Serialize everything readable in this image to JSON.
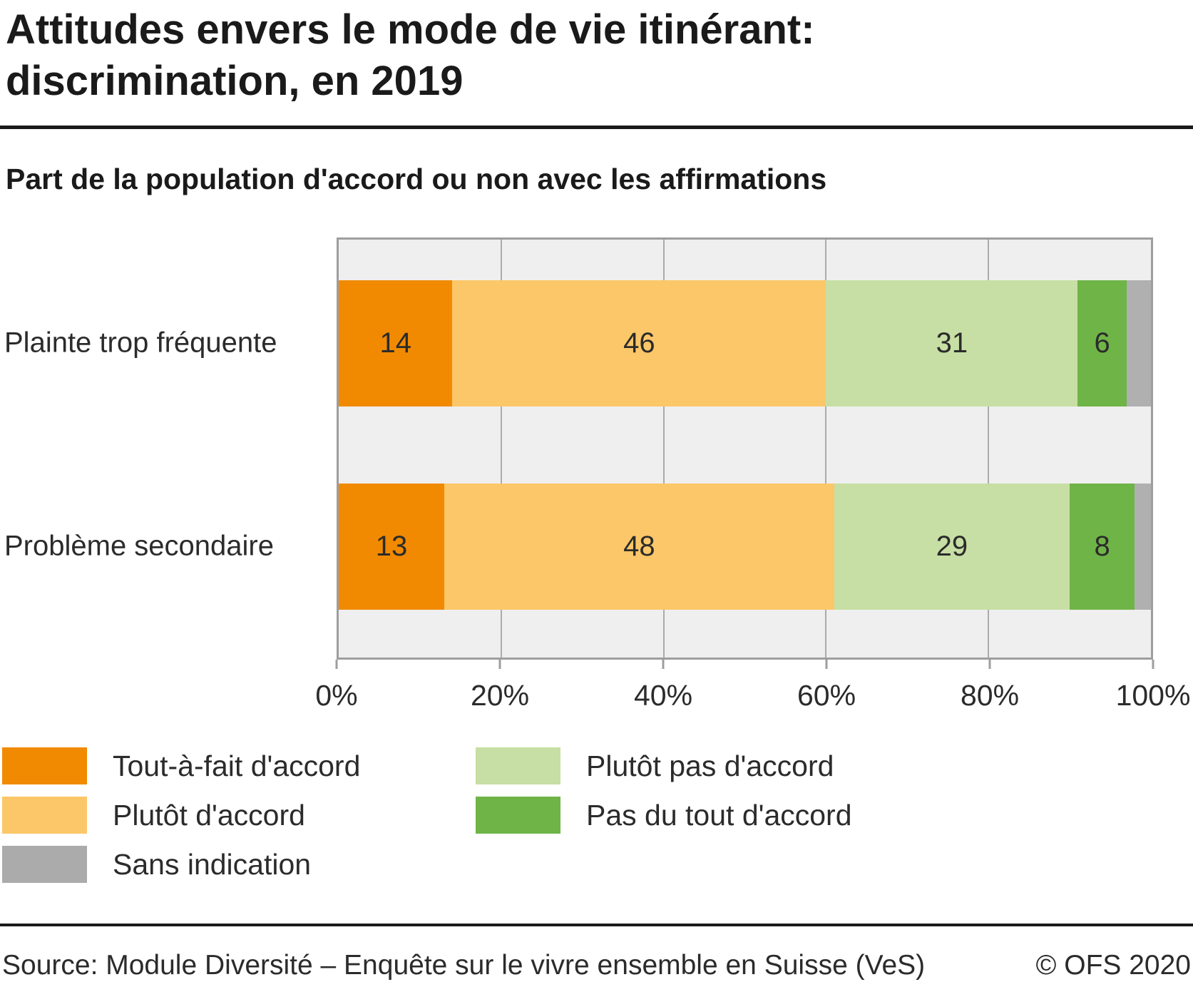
{
  "title_line1": "Attitudes envers le mode de vie itinérant:",
  "title_line2": "discrimination, en 2019",
  "subtitle": "Part de la population d'accord ou non avec les affirmations",
  "chart_data": {
    "type": "bar",
    "orientation": "horizontal",
    "stacked": true,
    "title": "Attitudes envers le mode de vie itinérant: discrimination, en 2019",
    "xlabel": "",
    "ylabel": "",
    "xlim": [
      0,
      100
    ],
    "grid": true,
    "x_ticks": [
      "0%",
      "20%",
      "40%",
      "60%",
      "80%",
      "100%"
    ],
    "categories": [
      "Plainte trop fréquente",
      "Problème secondaire"
    ],
    "series": [
      {
        "name": "Tout-à-fait d'accord",
        "color": "#f18a00",
        "values": [
          14,
          13
        ],
        "show_value_label": true
      },
      {
        "name": "Plutôt d'accord",
        "color": "#fbc768",
        "values": [
          46,
          48
        ],
        "show_value_label": true
      },
      {
        "name": "Plutôt pas d'accord",
        "color": "#c7dfa4",
        "values": [
          31,
          29
        ],
        "show_value_label": true
      },
      {
        "name": "Pas du tout d'accord",
        "color": "#6fb447",
        "values": [
          6,
          8
        ],
        "show_value_label": true
      },
      {
        "name": "Sans indication",
        "color": "#b0b0b0",
        "values": [
          3,
          2
        ],
        "show_value_label": false
      }
    ],
    "legend_position": "bottom"
  },
  "legend": {
    "columns": [
      [
        {
          "label": "Tout-à-fait d'accord",
          "color": "#f18a00"
        },
        {
          "label": "Plutôt d'accord",
          "color": "#fbc768"
        },
        {
          "label": "Sans indication",
          "color": "#ababab"
        }
      ],
      [
        {
          "label": "Plutôt pas d'accord",
          "color": "#c7dfa4"
        },
        {
          "label": "Pas du tout d'accord",
          "color": "#6fb447"
        }
      ]
    ]
  },
  "footer": {
    "source": "Source: Module Diversité – Enquête sur le vivre ensemble en Suisse (VeS)",
    "copyright": "© OFS 2020"
  }
}
